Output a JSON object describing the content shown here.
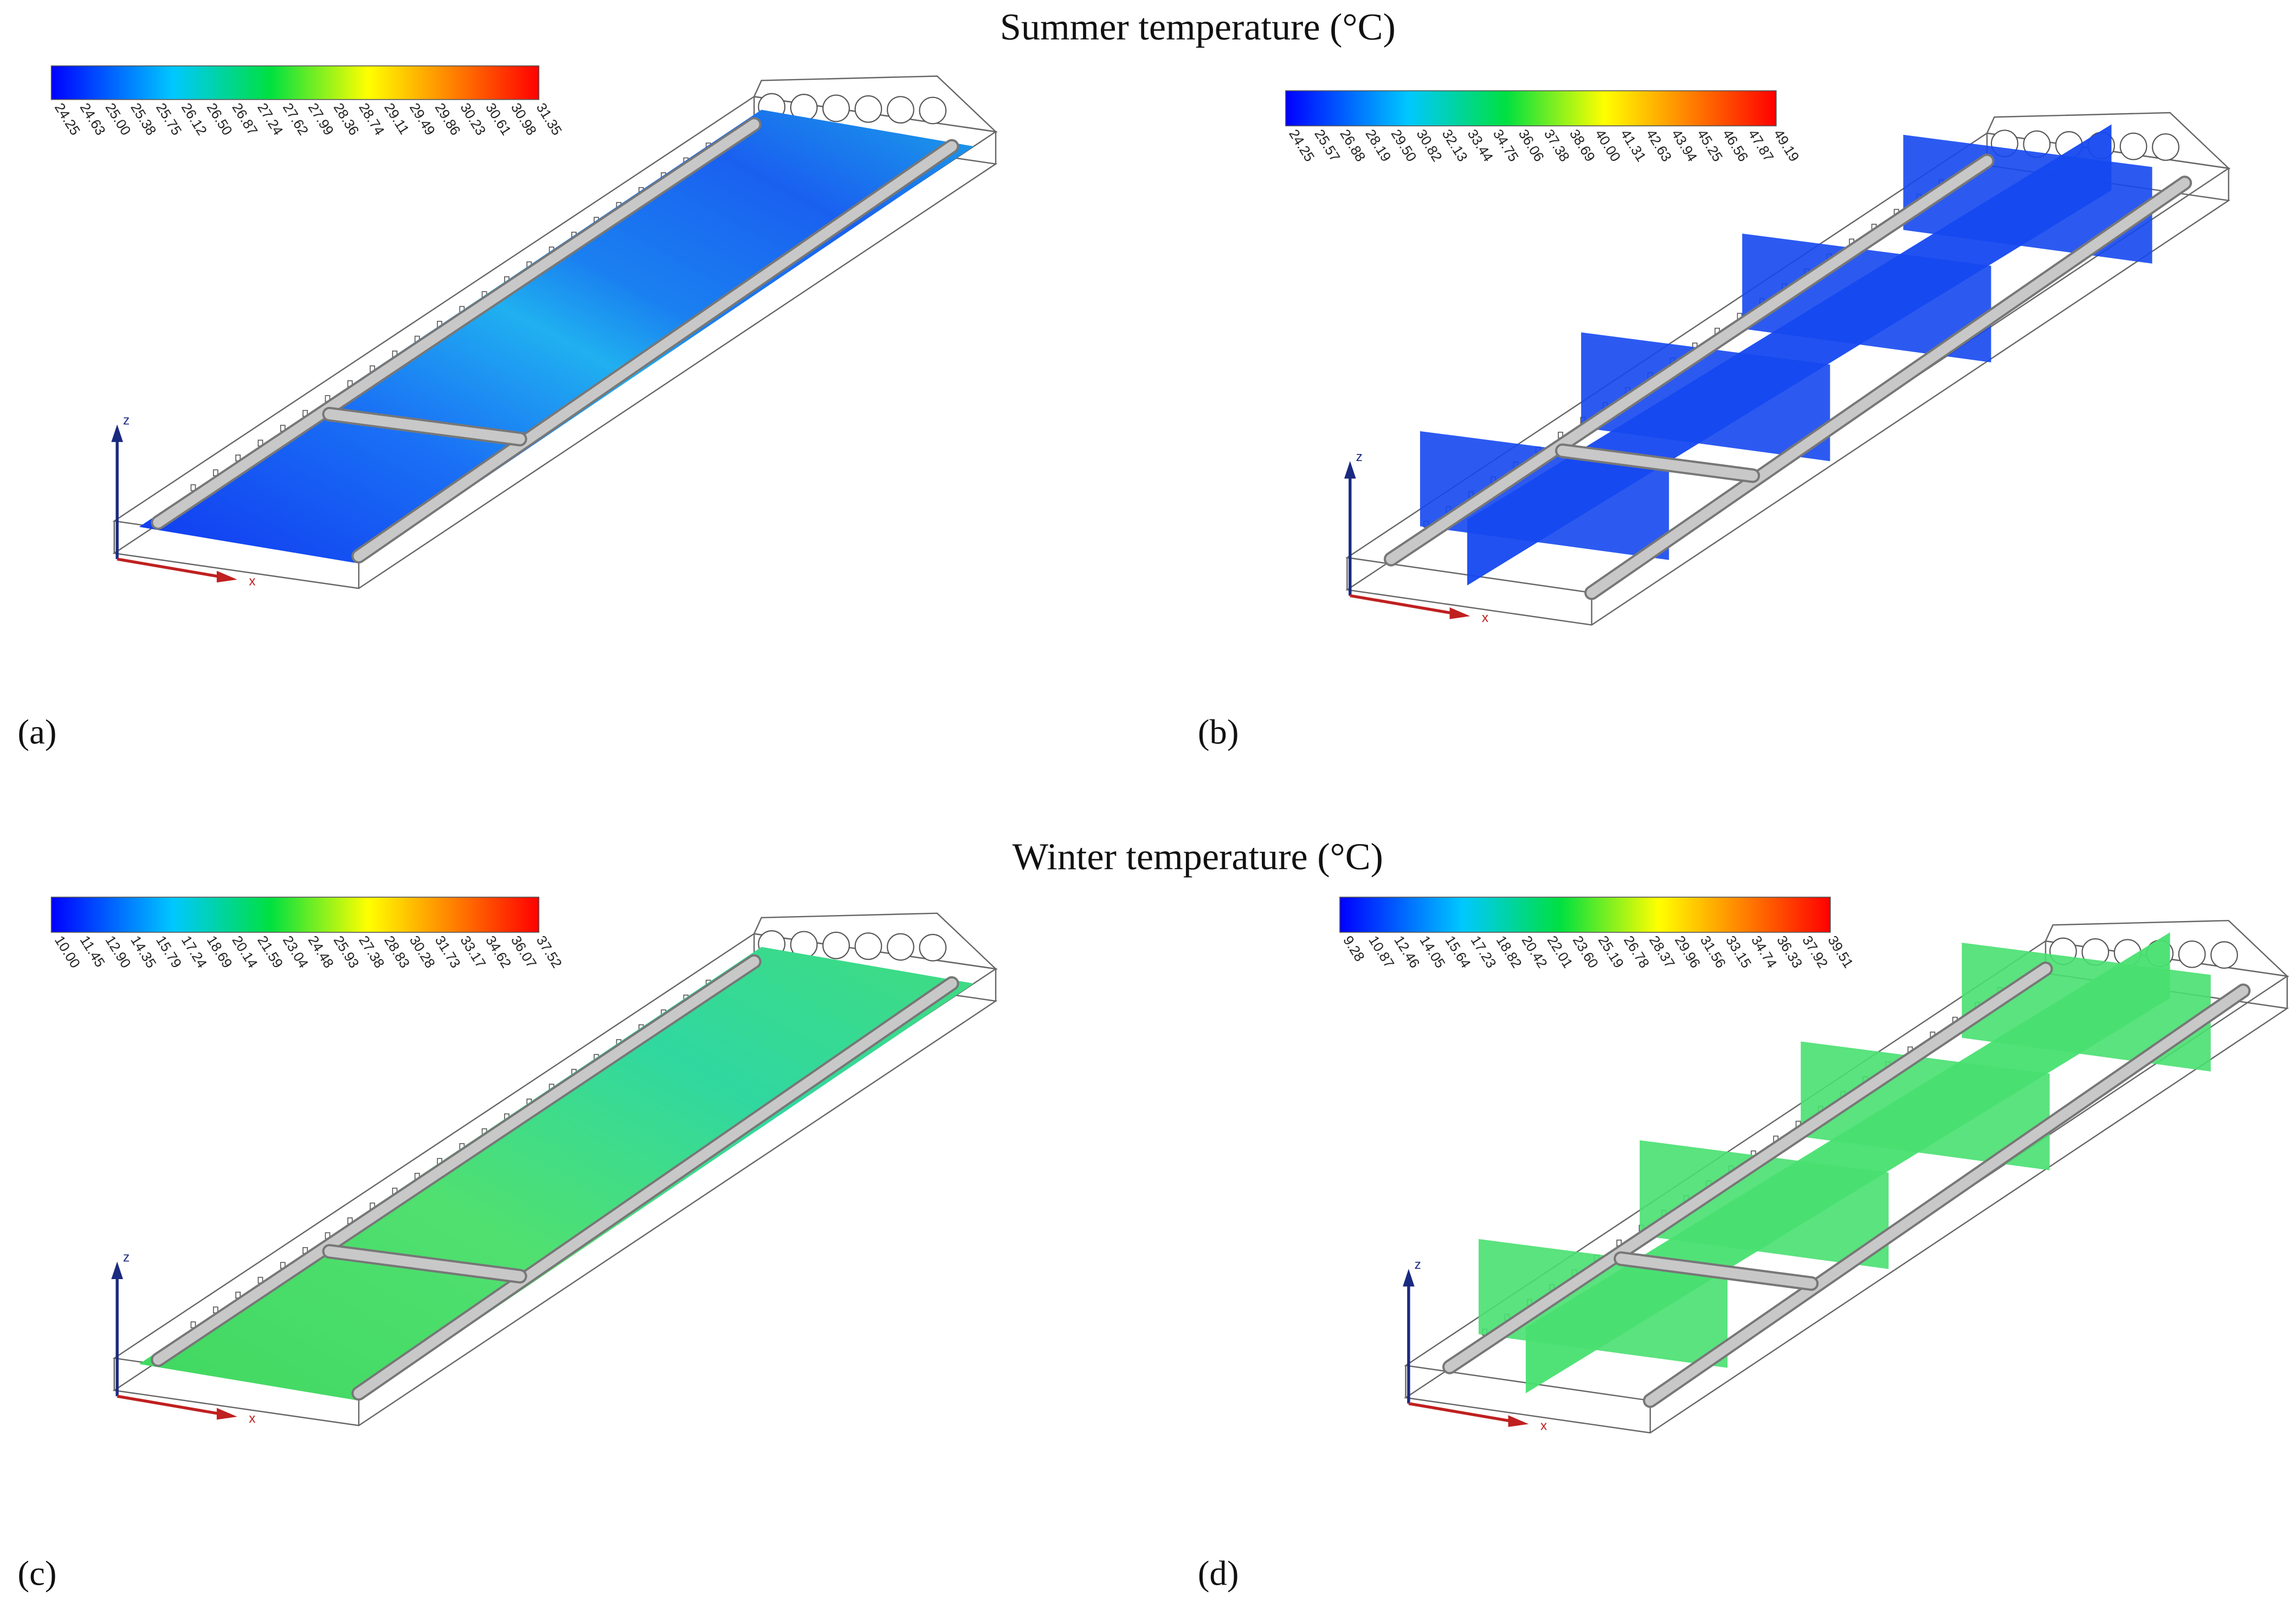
{
  "titles": {
    "summer": "Summer temperature (°C)",
    "winter": "Winter temperature (°C)"
  },
  "panels": [
    {
      "label": "(a)",
      "axes": {
        "z": "z",
        "x": "x"
      },
      "colorbar": [
        "24.25",
        "24.63",
        "25.00",
        "25.38",
        "25.75",
        "26.12",
        "26.50",
        "26.87",
        "27.24",
        "27.62",
        "27.99",
        "28.36",
        "28.74",
        "29.11",
        "29.49",
        "29.86",
        "30.23",
        "30.61",
        "30.98",
        "31.35"
      ]
    },
    {
      "label": "(b)",
      "axes": {
        "z": "z",
        "x": "x"
      },
      "colorbar": [
        "24.25",
        "25.57",
        "26.88",
        "28.19",
        "29.50",
        "30.82",
        "32.13",
        "33.44",
        "34.75",
        "36.06",
        "37.38",
        "38.69",
        "40.00",
        "41.31",
        "42.63",
        "43.94",
        "45.25",
        "46.56",
        "47.87",
        "49.19"
      ]
    },
    {
      "label": "(c)",
      "axes": {
        "z": "z",
        "x": "x"
      },
      "colorbar": [
        "10.00",
        "11.45",
        "12.90",
        "14.35",
        "15.79",
        "17.24",
        "18.69",
        "20.14",
        "21.59",
        "23.04",
        "24.48",
        "25.93",
        "27.38",
        "28.83",
        "30.28",
        "31.73",
        "33.17",
        "34.62",
        "36.07",
        "37.52"
      ]
    },
    {
      "label": "(d)",
      "axes": {
        "z": "z",
        "x": "x"
      },
      "colorbar": [
        "9.28",
        "10.87",
        "12.46",
        "14.05",
        "15.64",
        "17.23",
        "18.82",
        "20.42",
        "22.01",
        "23.60",
        "25.19",
        "26.78",
        "28.37",
        "29.96",
        "31.56",
        "33.15",
        "34.74",
        "36.33",
        "37.92",
        "39.51"
      ]
    }
  ]
}
